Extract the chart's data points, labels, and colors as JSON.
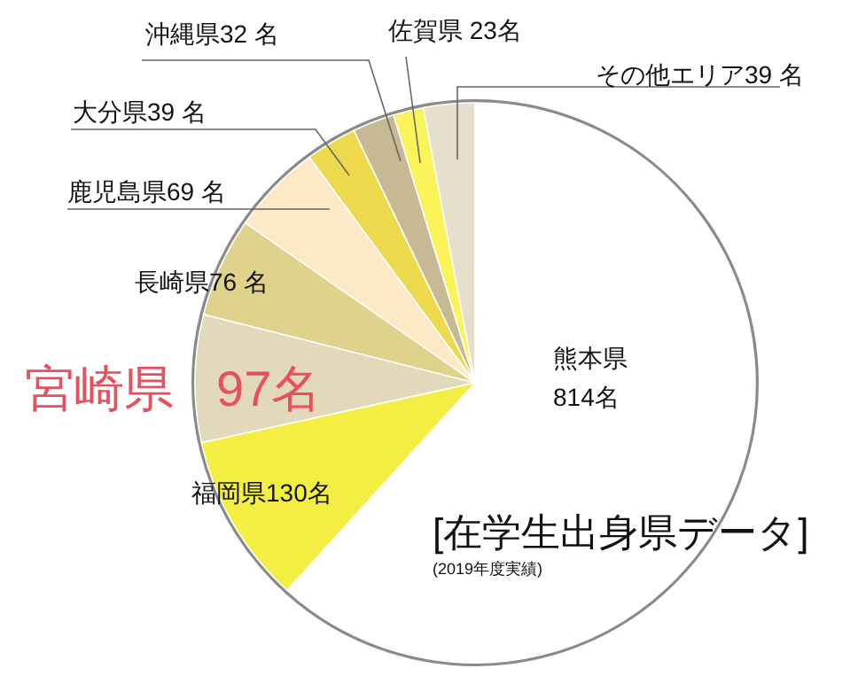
{
  "chart_data": {
    "type": "pie",
    "title": "[在学生出身県データ]",
    "subtitle": "(2019年度実績)",
    "categories": [
      "熊本県",
      "福岡県",
      "宮崎県",
      "長崎県",
      "鹿児島県",
      "大分県",
      "沖縄県",
      "佐賀県",
      "その他エリア"
    ],
    "values": [
      814,
      130,
      97,
      76,
      69,
      39,
      32,
      23,
      39
    ],
    "value_labels": [
      "814名",
      "130名",
      "97名",
      "76 名",
      "69 名",
      "39 名",
      "32 名",
      "23名",
      "39 名"
    ],
    "colors": [
      "#ffffff",
      "#f5ee42",
      "#e2d9bb",
      "#dfd38c",
      "#fde9c6",
      "#ecd94c",
      "#c7b994",
      "#fbf35a",
      "#e6dfcc"
    ],
    "legend": false
  }
}
